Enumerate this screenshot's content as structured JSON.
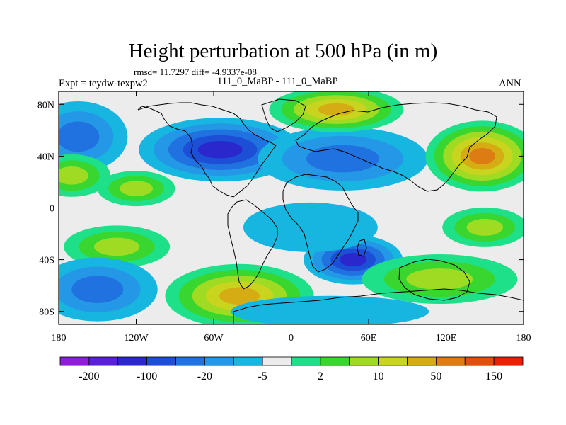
{
  "title": "Height perturbation at 500 hPa (in m)",
  "stats_line": "rmsd= 11.7297 diff= -4.9337e-08",
  "left_label": "Expt = teydw-texpw2",
  "center_label": "111_0_MaBP - 111_0_MaBP",
  "right_label": "ANN",
  "chart_data": {
    "type": "heatmap",
    "variable": "Height perturbation at 500 hPa (in m)",
    "x_axis": {
      "range": [
        -180,
        180
      ],
      "tick_values": [
        -180,
        -120,
        -60,
        0,
        60,
        120,
        180
      ],
      "tick_labels": [
        "180",
        "120W",
        "60W",
        "0",
        "60E",
        "120E",
        "180"
      ]
    },
    "y_axis": {
      "range": [
        -90,
        90
      ],
      "tick_values": [
        80,
        40,
        0,
        -40,
        -80
      ],
      "tick_labels": [
        "80N",
        "40N",
        "0",
        "40S",
        "80S"
      ]
    },
    "contour_levels": [
      -200,
      -150,
      -100,
      -50,
      -20,
      -10,
      -5,
      -2,
      2,
      5,
      10,
      20,
      50,
      100,
      150,
      200
    ],
    "colorbar": {
      "colors": [
        "#8a20d8",
        "#5a1fd6",
        "#2a28cc",
        "#1c4fd6",
        "#1f72e0",
        "#2497e6",
        "#16b6e0",
        "#ececec",
        "#1ee089",
        "#38d62e",
        "#9fdb22",
        "#c9d41e",
        "#d6ac14",
        "#dc7c12",
        "#e14e0e",
        "#ea1e0a"
      ],
      "labeled_levels": [
        "-200",
        "-100",
        "-20",
        "-5",
        "2",
        "10",
        "50",
        "150"
      ]
    },
    "anomaly_centers": [
      {
        "lon": -165,
        "lat": 55,
        "value": -20
      },
      {
        "lon": -55,
        "lat": 45,
        "value": -100
      },
      {
        "lon": 40,
        "lat": 38,
        "value": -20
      },
      {
        "lon": 35,
        "lat": 76,
        "value": 50
      },
      {
        "lon": 148,
        "lat": 40,
        "value": 100
      },
      {
        "lon": -170,
        "lat": 25,
        "value": 10
      },
      {
        "lon": -120,
        "lat": 15,
        "value": 10
      },
      {
        "lon": -135,
        "lat": -30,
        "value": 10
      },
      {
        "lon": -150,
        "lat": -63,
        "value": -20
      },
      {
        "lon": -40,
        "lat": -68,
        "value": 50
      },
      {
        "lon": 48,
        "lat": -40,
        "value": -100
      },
      {
        "lon": 115,
        "lat": -55,
        "value": 10
      },
      {
        "lon": 150,
        "lat": -15,
        "value": 10
      },
      {
        "lon": 15,
        "lat": -15,
        "value": -5
      },
      {
        "lon": 30,
        "lat": -80,
        "value": -5
      }
    ]
  }
}
